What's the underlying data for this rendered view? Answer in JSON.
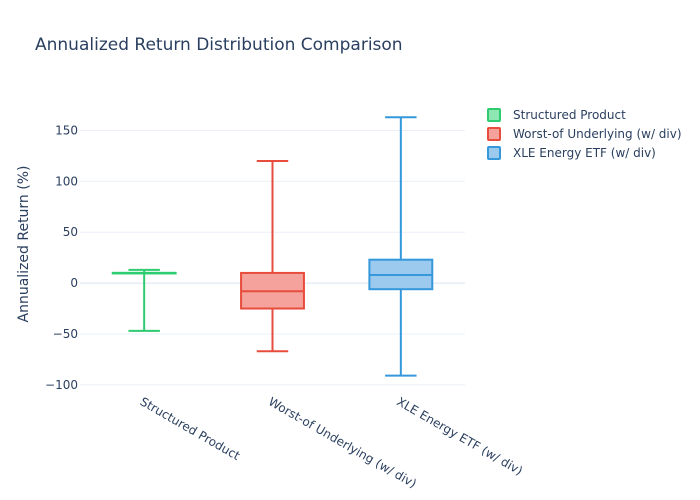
{
  "chart_data": {
    "type": "box",
    "title": "Annualized Return Distribution Comparison",
    "xlabel": "",
    "ylabel": "Annualized Return (%)",
    "ylim": [
      -110,
      180
    ],
    "yticks": [
      -100,
      -50,
      0,
      50,
      100,
      150
    ],
    "ytick_labels": [
      "−100",
      "−50",
      "0",
      "50",
      "100",
      "150"
    ],
    "grid": true,
    "legend_position": "top-right",
    "series": [
      {
        "name": "Structured Product",
        "color": "#2ecc71",
        "fill": "#8ee6b3",
        "min": -47,
        "q1": 10,
        "median": 10,
        "q3": 10,
        "max": 13
      },
      {
        "name": "Worst-of Underlying (w/ div)",
        "color": "#e74c3c",
        "fill": "#f4a29b",
        "min": -67,
        "q1": -25,
        "median": -8,
        "q3": 10,
        "max": 120
      },
      {
        "name": "XLE Energy ETF (w/ div)",
        "color": "#3498db",
        "fill": "#9ccaef",
        "min": -91,
        "q1": -6,
        "median": 8,
        "q3": 23,
        "max": 163
      }
    ]
  }
}
